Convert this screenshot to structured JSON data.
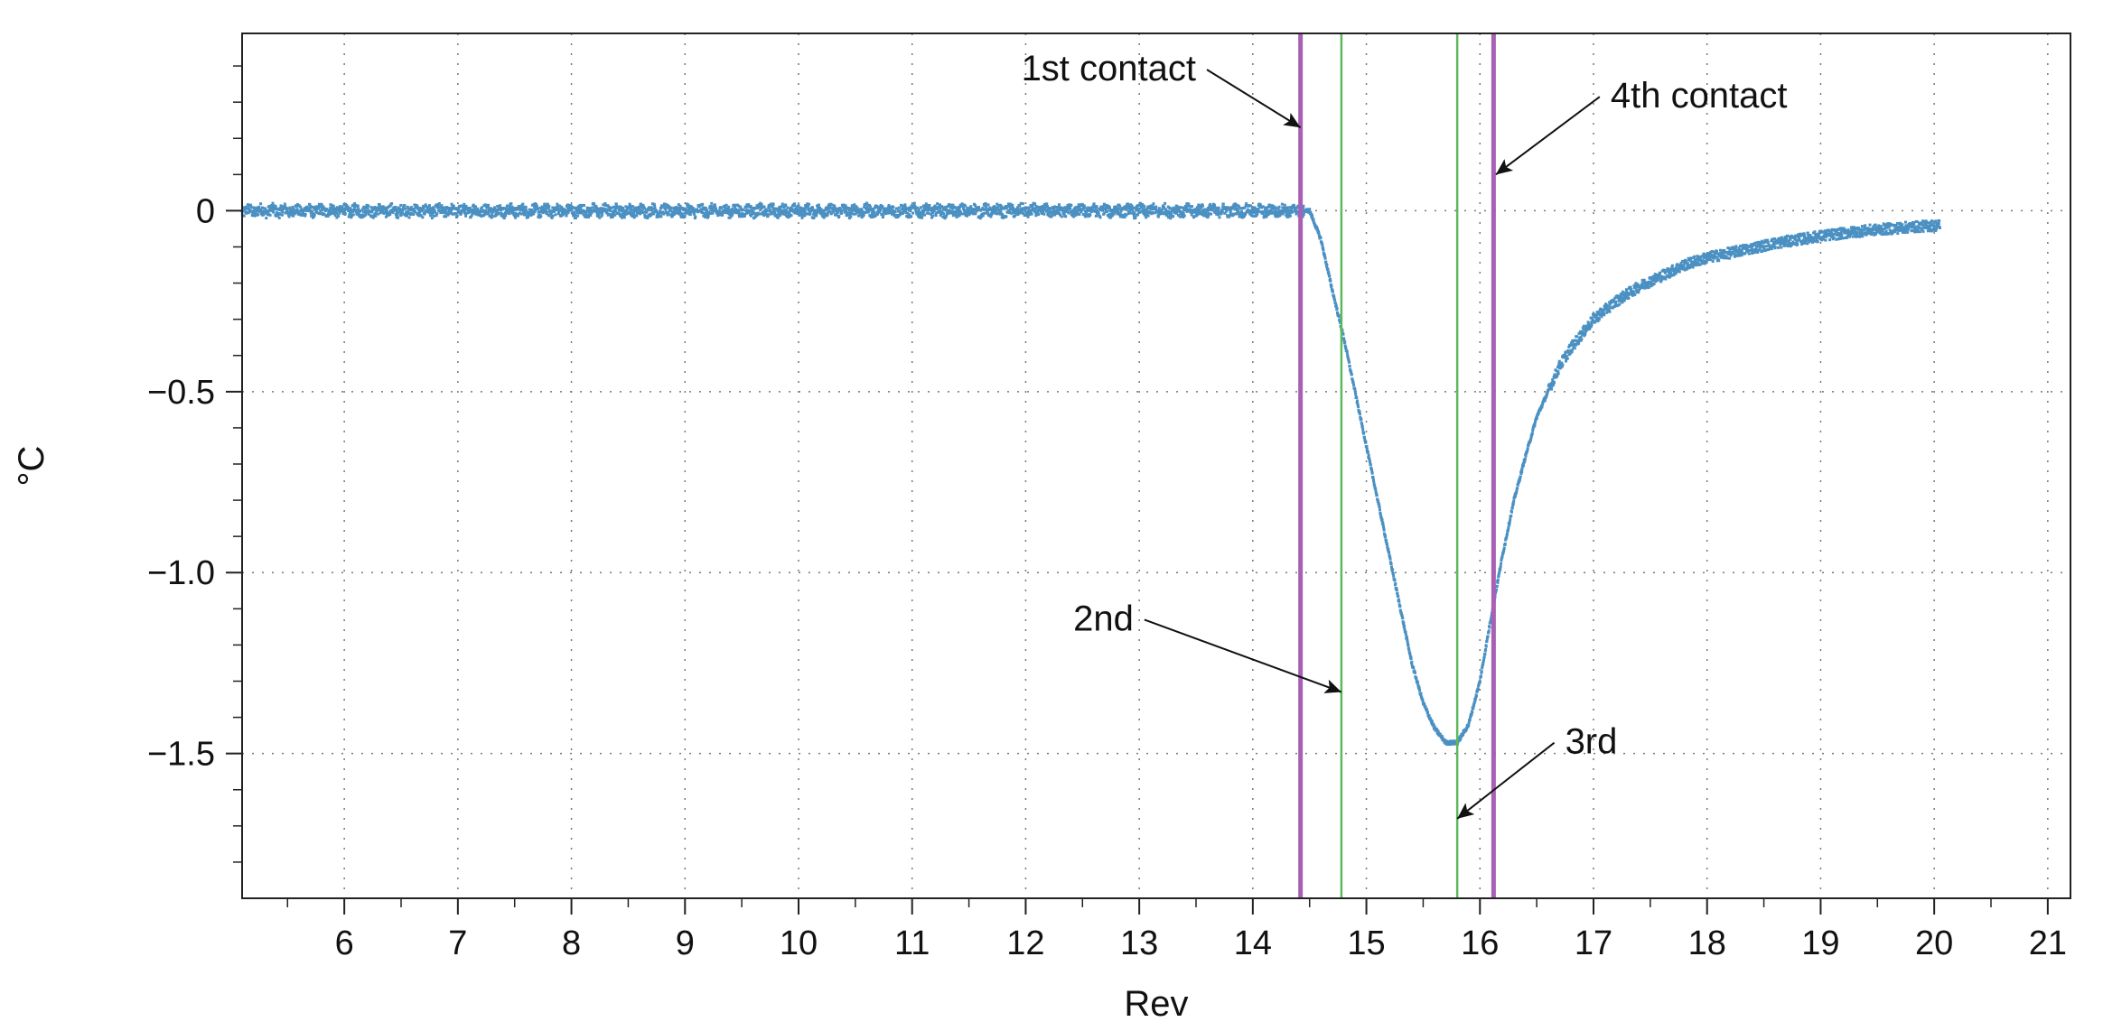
{
  "chart_data": {
    "type": "scatter",
    "xlabel": "Rev",
    "ylabel": "°C",
    "xlim": [
      5.1,
      21.2
    ],
    "ylim": [
      -1.9,
      0.49
    ],
    "xticks": [
      6,
      7,
      8,
      9,
      10,
      11,
      12,
      13,
      14,
      15,
      16,
      17,
      18,
      19,
      20,
      21
    ],
    "xtick_labels": [
      "6",
      "7",
      "8",
      "9",
      "10",
      "11",
      "12",
      "13",
      "14",
      "15",
      "16",
      "17",
      "18",
      "19",
      "20",
      "21"
    ],
    "yticks": [
      0,
      -0.5,
      -1.0,
      -1.5
    ],
    "ytick_labels": [
      "0",
      "−0.5",
      "−1.0",
      "−1.5"
    ],
    "grid": true,
    "series": [
      {
        "color": "#4a90c2",
        "x": [
          5.1,
          6,
          7,
          8,
          9,
          10,
          11,
          12,
          13,
          14,
          14.4,
          14.5,
          14.6,
          14.7,
          14.8,
          14.9,
          15.0,
          15.1,
          15.2,
          15.3,
          15.4,
          15.5,
          15.6,
          15.7,
          15.8,
          15.9,
          16.0,
          16.1,
          16.2,
          16.3,
          16.4,
          16.5,
          16.6,
          16.7,
          16.8,
          16.9,
          17.0,
          17.2,
          17.4,
          17.6,
          17.8,
          18.0,
          18.3,
          18.6,
          19.0,
          19.4,
          19.8,
          20.05
        ],
        "y": [
          0.0,
          0.0,
          0.0,
          0.0,
          0.0,
          0.0,
          0.0,
          0.0,
          0.0,
          0.0,
          0.0,
          0.0,
          -0.08,
          -0.22,
          -0.35,
          -0.5,
          -0.65,
          -0.8,
          -0.95,
          -1.1,
          -1.25,
          -1.36,
          -1.43,
          -1.47,
          -1.47,
          -1.42,
          -1.3,
          -1.12,
          -0.95,
          -0.8,
          -0.68,
          -0.57,
          -0.5,
          -0.43,
          -0.38,
          -0.34,
          -0.3,
          -0.25,
          -0.21,
          -0.18,
          -0.15,
          -0.13,
          -0.11,
          -0.09,
          -0.07,
          -0.055,
          -0.045,
          -0.04
        ]
      }
    ],
    "vlines": [
      {
        "x": 14.42,
        "color": "#a860b4",
        "style": "thick"
      },
      {
        "x": 14.78,
        "color": "#5cb85c",
        "style": "thin"
      },
      {
        "x": 15.8,
        "color": "#5cb85c",
        "style": "thin"
      },
      {
        "x": 16.12,
        "color": "#a860b4",
        "style": "thick"
      }
    ],
    "annotations": [
      {
        "text": "1st contact",
        "text_x": 13.5,
        "text_y": 0.36,
        "target_x": 14.42,
        "target_y": 0.23,
        "align": "end"
      },
      {
        "text": "4th contact",
        "text_x": 17.15,
        "text_y": 0.285,
        "target_x": 16.14,
        "target_y": 0.1,
        "align": "start"
      },
      {
        "text": "2nd",
        "text_x": 12.95,
        "text_y": -1.16,
        "target_x": 14.78,
        "target_y": -1.33,
        "align": "end"
      },
      {
        "text": "3rd",
        "text_x": 16.75,
        "text_y": -1.5,
        "target_x": 15.8,
        "target_y": -1.68,
        "align": "start"
      }
    ]
  }
}
